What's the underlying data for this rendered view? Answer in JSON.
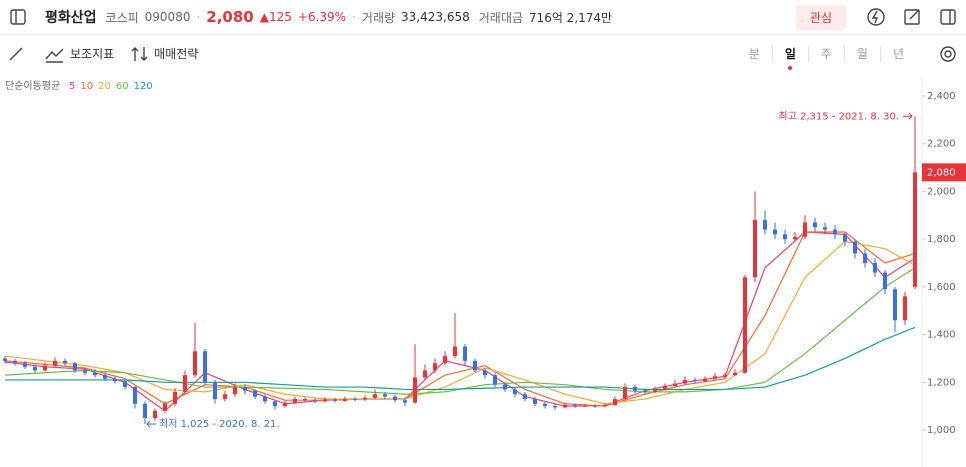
{
  "header": {
    "name": "평화산업",
    "market": "코스피",
    "code": "090080",
    "price": "2,080",
    "change": "▲125",
    "change_pct": "+6.39%",
    "volume_label": "거래량",
    "volume": "33,423,658",
    "amount_label": "거래대금",
    "amount": "716억 2,174만",
    "watch_button": "관심"
  },
  "toolbar": {
    "indicators": "보조지표",
    "strategy": "매매전략",
    "periods": [
      "분",
      "일",
      "주",
      "월",
      "년"
    ],
    "active_period": "일"
  },
  "chart_data": {
    "type": "candlestick",
    "legend_title": "단순이동평균",
    "up_color": "#e5343a",
    "down_color": "#3b6ee0",
    "candles": [
      [
        1300,
        1310,
        1280,
        1290
      ],
      [
        1290,
        1300,
        1270,
        1280
      ],
      [
        1280,
        1290,
        1255,
        1265
      ],
      [
        1265,
        1275,
        1240,
        1250
      ],
      [
        1250,
        1285,
        1245,
        1270
      ],
      [
        1270,
        1305,
        1265,
        1290
      ],
      [
        1290,
        1300,
        1270,
        1280
      ],
      [
        1280,
        1285,
        1240,
        1250
      ],
      [
        1250,
        1260,
        1230,
        1240
      ],
      [
        1240,
        1255,
        1220,
        1230
      ],
      [
        1230,
        1240,
        1205,
        1215
      ],
      [
        1215,
        1225,
        1195,
        1205
      ],
      [
        1205,
        1210,
        1170,
        1180
      ],
      [
        1180,
        1185,
        1090,
        1110
      ],
      [
        1110,
        1120,
        1025,
        1050
      ],
      [
        1050,
        1090,
        1040,
        1080
      ],
      [
        1080,
        1120,
        1070,
        1110
      ],
      [
        1110,
        1175,
        1100,
        1160
      ],
      [
        1160,
        1250,
        1150,
        1230
      ],
      [
        1230,
        1450,
        1220,
        1330
      ],
      [
        1330,
        1340,
        1190,
        1200
      ],
      [
        1200,
        1210,
        1110,
        1130
      ],
      [
        1130,
        1165,
        1120,
        1150
      ],
      [
        1150,
        1195,
        1140,
        1180
      ],
      [
        1180,
        1190,
        1150,
        1165
      ],
      [
        1165,
        1170,
        1130,
        1140
      ],
      [
        1140,
        1150,
        1110,
        1120
      ],
      [
        1120,
        1125,
        1085,
        1100
      ],
      [
        1100,
        1125,
        1095,
        1115
      ],
      [
        1115,
        1140,
        1110,
        1130
      ],
      [
        1130,
        1138,
        1115,
        1125
      ],
      [
        1125,
        1132,
        1112,
        1120
      ],
      [
        1120,
        1138,
        1115,
        1128
      ],
      [
        1128,
        1135,
        1115,
        1122
      ],
      [
        1122,
        1140,
        1118,
        1130
      ],
      [
        1130,
        1138,
        1120,
        1128
      ],
      [
        1128,
        1145,
        1122,
        1135
      ],
      [
        1135,
        1170,
        1130,
        1150
      ],
      [
        1150,
        1160,
        1130,
        1140
      ],
      [
        1140,
        1148,
        1115,
        1125
      ],
      [
        1125,
        1135,
        1100,
        1115
      ],
      [
        1115,
        1360,
        1110,
        1220
      ],
      [
        1220,
        1275,
        1210,
        1250
      ],
      [
        1250,
        1300,
        1240,
        1280
      ],
      [
        1280,
        1330,
        1270,
        1310
      ],
      [
        1310,
        1490,
        1300,
        1350
      ],
      [
        1350,
        1360,
        1270,
        1290
      ],
      [
        1290,
        1300,
        1240,
        1250
      ],
      [
        1250,
        1260,
        1215,
        1230
      ],
      [
        1230,
        1240,
        1180,
        1190
      ],
      [
        1190,
        1200,
        1160,
        1170
      ],
      [
        1170,
        1180,
        1140,
        1150
      ],
      [
        1150,
        1160,
        1120,
        1130
      ],
      [
        1130,
        1140,
        1100,
        1110
      ],
      [
        1110,
        1120,
        1090,
        1100
      ],
      [
        1100,
        1110,
        1085,
        1095
      ],
      [
        1095,
        1115,
        1090,
        1105
      ],
      [
        1105,
        1112,
        1092,
        1100
      ],
      [
        1100,
        1110,
        1095,
        1102
      ],
      [
        1102,
        1108,
        1092,
        1100
      ],
      [
        1100,
        1112,
        1095,
        1105
      ],
      [
        1105,
        1140,
        1100,
        1130
      ],
      [
        1130,
        1195,
        1125,
        1180
      ],
      [
        1180,
        1190,
        1155,
        1165
      ],
      [
        1165,
        1175,
        1150,
        1160
      ],
      [
        1160,
        1180,
        1155,
        1170
      ],
      [
        1170,
        1195,
        1165,
        1185
      ],
      [
        1185,
        1210,
        1180,
        1195
      ],
      [
        1195,
        1225,
        1190,
        1210
      ],
      [
        1210,
        1220,
        1195,
        1205
      ],
      [
        1205,
        1225,
        1200,
        1215
      ],
      [
        1215,
        1240,
        1210,
        1225
      ],
      [
        1225,
        1240,
        1215,
        1230
      ],
      [
        1230,
        1255,
        1225,
        1240
      ],
      [
        1240,
        1650,
        1235,
        1640
      ],
      [
        1640,
        2000,
        1620,
        1880
      ],
      [
        1880,
        1920,
        1820,
        1840
      ],
      [
        1840,
        1870,
        1800,
        1820
      ],
      [
        1820,
        1840,
        1780,
        1800
      ],
      [
        1800,
        1830,
        1790,
        1810
      ],
      [
        1810,
        1900,
        1800,
        1870
      ],
      [
        1870,
        1890,
        1830,
        1850
      ],
      [
        1850,
        1870,
        1820,
        1840
      ],
      [
        1840,
        1860,
        1800,
        1820
      ],
      [
        1820,
        1830,
        1770,
        1790
      ],
      [
        1790,
        1800,
        1720,
        1740
      ],
      [
        1740,
        1760,
        1680,
        1700
      ],
      [
        1700,
        1720,
        1640,
        1660
      ],
      [
        1660,
        1670,
        1570,
        1590
      ],
      [
        1590,
        1600,
        1410,
        1460
      ],
      [
        1460,
        1580,
        1440,
        1560
      ],
      [
        1600,
        2315,
        1590,
        2080
      ]
    ],
    "ma_x": [
      0,
      4,
      8,
      12,
      16,
      20,
      24,
      28,
      32,
      36,
      40,
      44,
      48,
      52,
      56,
      60,
      64,
      68,
      72,
      76,
      80,
      84,
      88,
      91
    ],
    "series": [
      {
        "name": "5",
        "color": "#e8436f",
        "values": [
          1285,
          1265,
          1255,
          1200,
          1080,
          1240,
          1170,
          1110,
          1125,
          1130,
          1130,
          1290,
          1250,
          1140,
          1100,
          1102,
          1165,
          1200,
          1225,
          1680,
          1830,
          1820,
          1640,
          1720
        ]
      },
      {
        "name": "10",
        "color": "#f36b32",
        "values": [
          1290,
          1275,
          1260,
          1215,
          1110,
          1190,
          1180,
          1125,
          1125,
          1130,
          1130,
          1230,
          1270,
          1170,
          1110,
          1100,
          1150,
          1190,
          1215,
          1480,
          1830,
          1830,
          1700,
          1740
        ]
      },
      {
        "name": "20",
        "color": "#f2a93b",
        "values": [
          1310,
          1290,
          1270,
          1240,
          1170,
          1160,
          1190,
          1150,
          1130,
          1130,
          1130,
          1180,
          1260,
          1210,
          1150,
          1110,
          1130,
          1170,
          1200,
          1320,
          1640,
          1790,
          1760,
          1690
        ]
      },
      {
        "name": "60",
        "color": "#6abf4b",
        "values": [
          1230,
          1240,
          1250,
          1240,
          1210,
          1180,
          1180,
          1175,
          1170,
          1160,
          1150,
          1160,
          1190,
          1200,
          1190,
          1170,
          1160,
          1160,
          1170,
          1200,
          1320,
          1460,
          1600,
          1680
        ]
      },
      {
        "name": "120",
        "color": "#1b9a9c",
        "values": [
          1210,
          1210,
          1210,
          1210,
          1200,
          1200,
          1200,
          1190,
          1180,
          1180,
          1170,
          1170,
          1175,
          1180,
          1180,
          1180,
          1170,
          1170,
          1170,
          1180,
          1230,
          1300,
          1380,
          1430
        ]
      }
    ],
    "ylim": [
      845,
      2488
    ],
    "yticks": [
      {
        "value": 1000,
        "label": "1,000"
      },
      {
        "value": 1200,
        "label": "1,200"
      },
      {
        "value": 1400,
        "label": "1,400"
      },
      {
        "value": 1600,
        "label": "1,600"
      },
      {
        "value": 1800,
        "label": "1,800"
      },
      {
        "value": 2000,
        "label": "2,000"
      },
      {
        "value": 2200,
        "label": "2,200"
      },
      {
        "value": 2400,
        "label": "2,400"
      }
    ],
    "last_price": {
      "value": 2080,
      "label": "2,080"
    },
    "high_annotation": {
      "text": "최고 2,315 - 2021. 8. 30.",
      "candle": 91,
      "value": 2315
    },
    "low_annotation": {
      "text": "최저 1,025 - 2020. 8. 21.",
      "candle": 14,
      "value": 1025
    }
  }
}
